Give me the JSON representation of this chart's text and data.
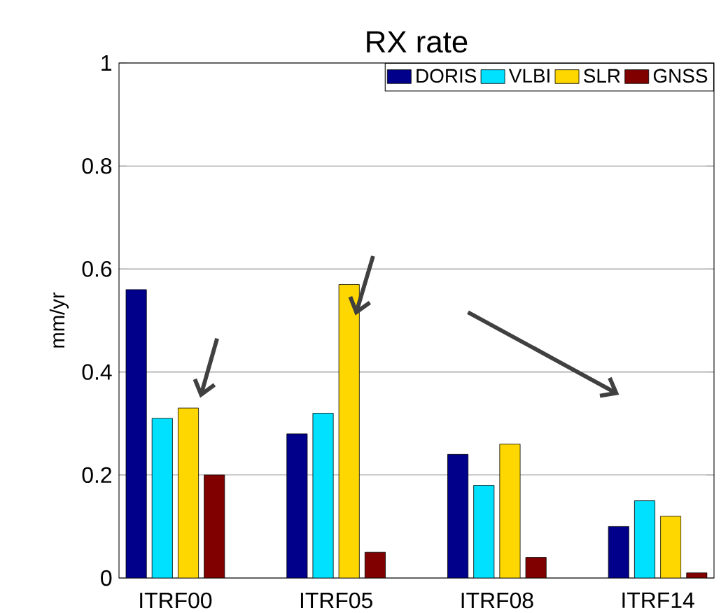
{
  "chart_data": {
    "type": "bar",
    "title": "RX rate",
    "ylabel": "mm/yr",
    "categories": [
      "ITRF00",
      "ITRF05",
      "ITRF08",
      "ITRF14"
    ],
    "series": [
      {
        "name": "DORIS",
        "color": "#00008b",
        "values": [
          0.56,
          0.28,
          0.24,
          0.1
        ]
      },
      {
        "name": "VLBI",
        "color": "#00e0ff",
        "values": [
          0.31,
          0.32,
          0.18,
          0.15
        ]
      },
      {
        "name": "SLR",
        "color": "#ffd700",
        "values": [
          0.33,
          0.57,
          0.26,
          0.12
        ]
      },
      {
        "name": "GNSS",
        "color": "#800000",
        "values": [
          0.2,
          0.05,
          0.04,
          0.01
        ]
      }
    ],
    "ylim": [
      0,
      1
    ],
    "yticks": [
      0,
      0.2,
      0.4,
      0.6,
      0.8,
      1
    ],
    "grid": "y",
    "legend": "top right"
  }
}
